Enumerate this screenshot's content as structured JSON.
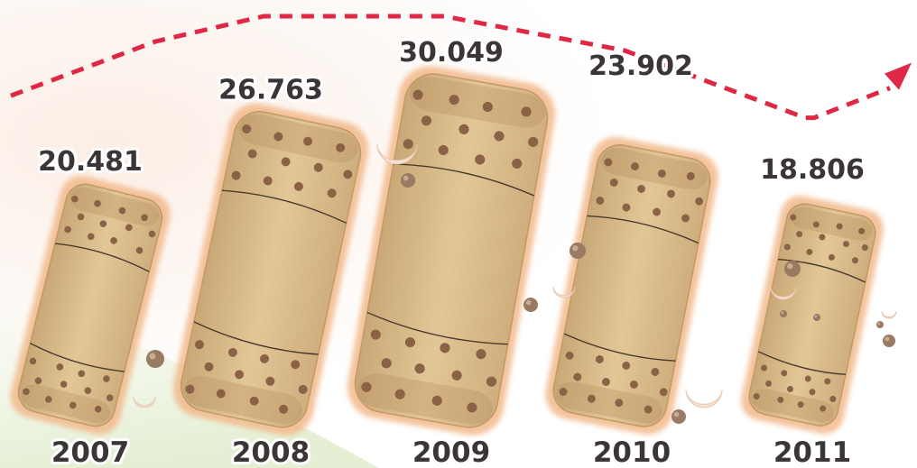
{
  "colors": {
    "background_top": "#ffffff",
    "background_glow": "#fbeee5",
    "background_green": "#e4efd3",
    "trend_line": "#e02745",
    "biscuit_fill": "#dcbf8e",
    "biscuit_glow": "#f2b98b",
    "biscuit_dots": "#8b6245",
    "label_text": "#3b3536"
  },
  "icons": [
    "biscuit-bar-icon",
    "crumb-icon",
    "crescent-crumb-icon",
    "trend-arrow-icon"
  ],
  "chart_data": {
    "type": "bar",
    "title": "",
    "xlabel": "",
    "ylabel": "",
    "categories": [
      "2007",
      "2008",
      "2009",
      "2010",
      "2011"
    ],
    "values": [
      20481,
      26763,
      30049,
      23902,
      18806
    ],
    "value_labels": [
      "20.481",
      "26.763",
      "30.049",
      "23.902",
      "18.806"
    ],
    "grid": false,
    "legend": "none",
    "trend_line": true
  }
}
